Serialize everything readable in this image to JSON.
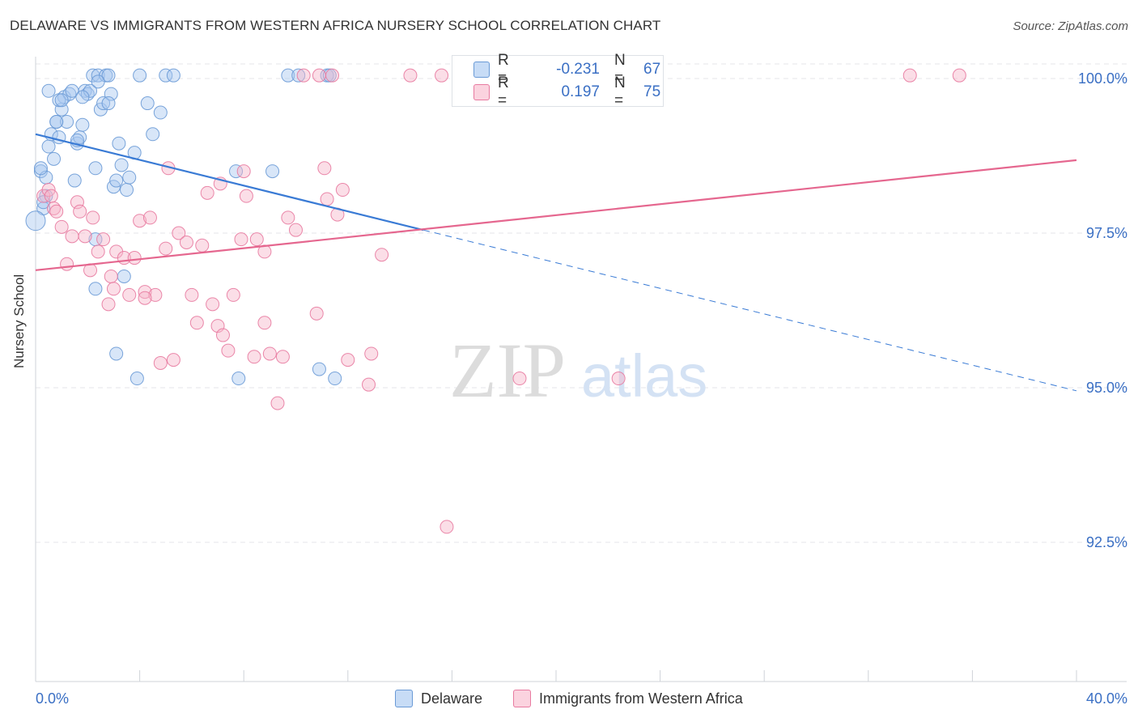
{
  "title": "DELAWARE VS IMMIGRANTS FROM WESTERN AFRICA NURSERY SCHOOL CORRELATION CHART",
  "source": "Source: ZipAtlas.com",
  "watermark": {
    "zip": "ZIP",
    "atlas": "atlas"
  },
  "stats": [
    {
      "r_label": "R =",
      "r_value": "-0.231",
      "n_label": "N =",
      "n_value": "67",
      "color": "#a9c8f0"
    },
    {
      "r_label": "R =",
      "r_value": "0.197",
      "n_label": "N =",
      "n_value": "75",
      "color": "#f7b6c9"
    }
  ],
  "legend": [
    {
      "label": "Delaware",
      "color": "#a9c8f0"
    },
    {
      "label": "Immigrants from Western Africa",
      "color": "#f7b6c9"
    }
  ],
  "chart_data": {
    "type": "scatter",
    "ylabel": "Nursery School",
    "x_tick_labels": [
      "0.0%",
      "40.0%"
    ],
    "y_tick_labels": [
      "100.0%",
      "97.5%",
      "95.0%",
      "92.5%"
    ],
    "y_ticks": [
      100.0,
      97.5,
      95.0,
      92.5
    ],
    "xlim": [
      0,
      40
    ],
    "ylim": [
      90.0,
      100.25
    ],
    "grid": true,
    "series": [
      {
        "name": "Delaware",
        "color": "#6a9ad6",
        "fill": "#a9c8f0",
        "trend": {
          "x": [
            0,
            14.9,
            40
          ],
          "y": [
            99.1,
            97.55,
            94.95
          ],
          "solid_until": 14.9
        },
        "points": [
          [
            0.2,
            98.5
          ],
          [
            0.4,
            98.4
          ],
          [
            0.3,
            97.9
          ],
          [
            0,
            97.7
          ],
          [
            0.2,
            98.55
          ],
          [
            0.4,
            98.1
          ],
          [
            0.5,
            98.9
          ],
          [
            0.6,
            99.1
          ],
          [
            0.7,
            98.7
          ],
          [
            0.8,
            99.3
          ],
          [
            0.9,
            99.05
          ],
          [
            1.0,
            99.5
          ],
          [
            1.1,
            99.7
          ],
          [
            1.2,
            99.3
          ],
          [
            1.3,
            99.75
          ],
          [
            1.4,
            99.8
          ],
          [
            1.5,
            98.35
          ],
          [
            1.6,
            98.95
          ],
          [
            1.7,
            99.05
          ],
          [
            1.8,
            99.25
          ],
          [
            1.9,
            99.8
          ],
          [
            2.0,
            99.75
          ],
          [
            2.1,
            99.8
          ],
          [
            2.2,
            100.05
          ],
          [
            2.3,
            98.55
          ],
          [
            2.4,
            100.05
          ],
          [
            2.5,
            99.5
          ],
          [
            2.6,
            99.6
          ],
          [
            2.7,
            100.05
          ],
          [
            2.8,
            100.05
          ],
          [
            2.9,
            99.75
          ],
          [
            3.0,
            98.25
          ],
          [
            3.1,
            98.35
          ],
          [
            3.2,
            98.95
          ],
          [
            3.3,
            98.6
          ],
          [
            3.4,
            96.8
          ],
          [
            3.5,
            98.2
          ],
          [
            3.6,
            98.4
          ],
          [
            3.8,
            98.8
          ],
          [
            3.9,
            95.15
          ],
          [
            4.0,
            100.05
          ],
          [
            4.3,
            99.6
          ],
          [
            4.5,
            99.1
          ],
          [
            4.8,
            99.45
          ],
          [
            5.0,
            100.05
          ],
          [
            5.3,
            100.05
          ],
          [
            7.7,
            98.5
          ],
          [
            7.8,
            95.15
          ],
          [
            9.1,
            98.5
          ],
          [
            9.7,
            100.05
          ],
          [
            10.1,
            100.05
          ],
          [
            10.9,
            95.3
          ],
          [
            11.2,
            100.05
          ],
          [
            11.5,
            95.15
          ],
          [
            0.5,
            99.8
          ],
          [
            0.9,
            99.65
          ],
          [
            1.6,
            99.0
          ],
          [
            2.3,
            97.4
          ],
          [
            2.3,
            96.6
          ],
          [
            3.1,
            95.55
          ],
          [
            2.8,
            99.6
          ],
          [
            1.8,
            99.7
          ],
          [
            1.0,
            99.65
          ],
          [
            0.8,
            99.3
          ],
          [
            2.4,
            99.95
          ],
          [
            0.3,
            98.0
          ],
          [
            11.3,
            100.05
          ]
        ]
      },
      {
        "name": "Immigrants from Western Africa",
        "color": "#e87aa0",
        "fill": "#f7b6c9",
        "trend": {
          "x": [
            0,
            40
          ],
          "y": [
            96.9,
            98.68
          ]
        },
        "points": [
          [
            0.3,
            98.1
          ],
          [
            0.5,
            98.2
          ],
          [
            0.6,
            98.1
          ],
          [
            0.7,
            97.9
          ],
          [
            0.8,
            97.85
          ],
          [
            1.0,
            97.6
          ],
          [
            1.2,
            97.0
          ],
          [
            1.4,
            97.45
          ],
          [
            1.6,
            98.0
          ],
          [
            1.7,
            97.85
          ],
          [
            1.9,
            97.45
          ],
          [
            2.1,
            96.9
          ],
          [
            2.2,
            97.75
          ],
          [
            2.4,
            97.2
          ],
          [
            2.6,
            97.4
          ],
          [
            2.8,
            96.35
          ],
          [
            2.9,
            96.8
          ],
          [
            3.1,
            97.2
          ],
          [
            3.4,
            97.1
          ],
          [
            3.6,
            96.5
          ],
          [
            3.8,
            97.1
          ],
          [
            4.0,
            97.7
          ],
          [
            4.2,
            96.55
          ],
          [
            4.4,
            97.75
          ],
          [
            4.6,
            96.5
          ],
          [
            4.8,
            95.4
          ],
          [
            5.0,
            97.25
          ],
          [
            5.1,
            98.55
          ],
          [
            5.3,
            95.45
          ],
          [
            5.5,
            97.5
          ],
          [
            5.8,
            97.35
          ],
          [
            6.0,
            96.5
          ],
          [
            6.2,
            96.05
          ],
          [
            6.4,
            97.3
          ],
          [
            6.6,
            98.15
          ],
          [
            6.8,
            96.35
          ],
          [
            7.0,
            96.0
          ],
          [
            7.2,
            95.85
          ],
          [
            7.4,
            95.6
          ],
          [
            7.6,
            96.5
          ],
          [
            7.9,
            97.4
          ],
          [
            8.0,
            98.5
          ],
          [
            8.1,
            98.1
          ],
          [
            8.4,
            95.5
          ],
          [
            8.5,
            97.4
          ],
          [
            8.8,
            97.2
          ],
          [
            8.8,
            96.05
          ],
          [
            9.0,
            95.55
          ],
          [
            9.3,
            94.75
          ],
          [
            9.5,
            95.5
          ],
          [
            9.7,
            97.75
          ],
          [
            10.0,
            97.55
          ],
          [
            10.3,
            100.05
          ],
          [
            10.8,
            96.2
          ],
          [
            11.1,
            98.55
          ],
          [
            11.2,
            98.05
          ],
          [
            11.6,
            97.8
          ],
          [
            11.8,
            98.2
          ],
          [
            12.0,
            95.45
          ],
          [
            12.8,
            95.05
          ],
          [
            12.9,
            95.55
          ],
          [
            13.3,
            97.15
          ],
          [
            14.4,
            100.05
          ],
          [
            15.6,
            100.05
          ],
          [
            15.8,
            92.75
          ],
          [
            16.3,
            100.05
          ],
          [
            18.6,
            95.15
          ],
          [
            22.4,
            95.15
          ],
          [
            33.6,
            100.05
          ],
          [
            35.5,
            100.05
          ],
          [
            10.9,
            100.05
          ],
          [
            11.4,
            100.05
          ],
          [
            7.1,
            98.3
          ],
          [
            4.2,
            96.45
          ],
          [
            3.0,
            96.6
          ]
        ]
      }
    ]
  }
}
